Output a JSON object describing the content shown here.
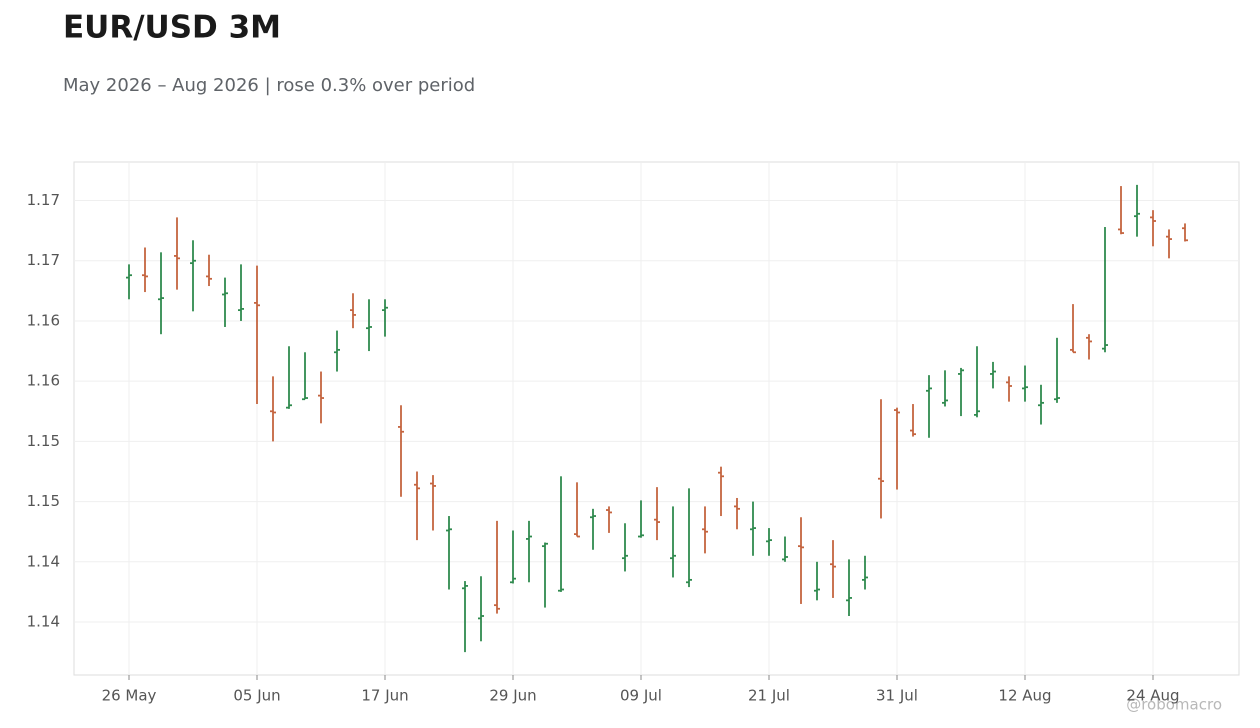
{
  "chart_data": {
    "type": "ohlc",
    "title": "EUR/USD 3M",
    "subtitle": "May 2026 – Aug 2026 | rose 0.3% over period",
    "watermark": "@robomacro",
    "categories": [
      "26 May",
      null,
      null,
      null,
      null,
      null,
      null,
      null,
      "05 Jun",
      null,
      null,
      null,
      null,
      null,
      null,
      null,
      "17 Jun",
      null,
      null,
      null,
      null,
      null,
      null,
      null,
      "29 Jun",
      null,
      null,
      null,
      null,
      null,
      null,
      null,
      "09 Jul",
      null,
      null,
      null,
      null,
      null,
      null,
      null,
      "21 Jul",
      null,
      null,
      null,
      null,
      null,
      null,
      null,
      "31 Jul",
      null,
      null,
      null,
      null,
      null,
      null,
      null,
      "12 Aug",
      null,
      null,
      null,
      null,
      null,
      null,
      null,
      "24 Aug",
      null,
      null
    ],
    "open": [
      1.1661,
      1.1663,
      1.1643,
      1.1679,
      1.1673,
      1.1662,
      1.1647,
      1.1634,
      1.164,
      1.155,
      1.1553,
      1.156,
      1.1563,
      1.1599,
      1.1634,
      1.1619,
      1.1634,
      1.1537,
      1.1489,
      1.149,
      1.1451,
      1.1403,
      1.1378,
      1.1389,
      1.1408,
      1.1444,
      1.1438,
      1.1401,
      1.1448,
      1.1462,
      1.1468,
      1.1428,
      1.1446,
      1.146,
      1.1428,
      1.1408,
      1.1452,
      1.1499,
      1.1471,
      1.1452,
      1.1442,
      1.1427,
      1.1438,
      1.1401,
      1.1423,
      1.1393,
      1.141,
      1.1494,
      1.1551,
      1.1534,
      1.1567,
      1.1557,
      1.1581,
      1.1547,
      1.1581,
      1.1574,
      1.1569,
      1.1555,
      1.156,
      1.1601,
      1.1611,
      1.1602,
      1.1701,
      1.1712,
      1.1711,
      1.1695,
      1.1702
    ],
    "high": [
      1.1672,
      1.1686,
      1.1682,
      1.1711,
      1.1692,
      1.168,
      1.1661,
      1.1672,
      1.1671,
      1.1579,
      1.1604,
      1.1599,
      1.1583,
      1.1617,
      1.1648,
      1.1643,
      1.1643,
      1.1555,
      1.15,
      1.1497,
      1.1463,
      1.1409,
      1.1413,
      1.1459,
      1.1451,
      1.1459,
      1.1441,
      1.1496,
      1.1491,
      1.1469,
      1.1471,
      1.1457,
      1.1476,
      1.1487,
      1.1471,
      1.1486,
      1.1471,
      1.1504,
      1.1478,
      1.1475,
      1.1453,
      1.1446,
      1.1462,
      1.1425,
      1.1443,
      1.1427,
      1.143,
      1.156,
      1.1553,
      1.1556,
      1.158,
      1.1584,
      1.1586,
      1.1604,
      1.1591,
      1.1579,
      1.1588,
      1.1572,
      1.1611,
      1.1639,
      1.1614,
      1.1703,
      1.1737,
      1.1738,
      1.1717,
      1.1701,
      1.1706
    ],
    "low": [
      1.1643,
      1.1649,
      1.1614,
      1.1651,
      1.1633,
      1.1654,
      1.162,
      1.1625,
      1.1556,
      1.1525,
      1.1552,
      1.156,
      1.154,
      1.1583,
      1.1619,
      1.16,
      1.1612,
      1.1479,
      1.1443,
      1.1451,
      1.1402,
      1.135,
      1.1359,
      1.1382,
      1.1407,
      1.1408,
      1.1387,
      1.14,
      1.1446,
      1.1435,
      1.1449,
      1.1417,
      1.1445,
      1.1443,
      1.1412,
      1.1404,
      1.1432,
      1.1463,
      1.1452,
      1.143,
      1.143,
      1.1425,
      1.139,
      1.1393,
      1.1395,
      1.138,
      1.1402,
      1.1461,
      1.1485,
      1.1529,
      1.1528,
      1.1554,
      1.1546,
      1.1545,
      1.1569,
      1.1558,
      1.1558,
      1.1539,
      1.1557,
      1.1599,
      1.1593,
      1.1599,
      1.1697,
      1.1695,
      1.1687,
      1.1677,
      1.1691
    ],
    "close": [
      1.1663,
      1.1662,
      1.1644,
      1.1677,
      1.1675,
      1.166,
      1.1648,
      1.1635,
      1.1638,
      1.1549,
      1.1555,
      1.1561,
      1.1561,
      1.1601,
      1.163,
      1.162,
      1.1636,
      1.1533,
      1.1486,
      1.1488,
      1.1452,
      1.1405,
      1.138,
      1.1386,
      1.1411,
      1.1446,
      1.144,
      1.1402,
      1.1446,
      1.1463,
      1.1466,
      1.143,
      1.1447,
      1.1458,
      1.143,
      1.141,
      1.145,
      1.1496,
      1.1469,
      1.1453,
      1.1443,
      1.1429,
      1.1437,
      1.1402,
      1.1421,
      1.1395,
      1.1412,
      1.1492,
      1.1549,
      1.1531,
      1.1569,
      1.1559,
      1.1584,
      1.155,
      1.1583,
      1.1571,
      1.157,
      1.1557,
      1.1561,
      1.1599,
      1.1608,
      1.1605,
      1.1698,
      1.1714,
      1.1708,
      1.1693,
      1.1692
    ],
    "up_color": "#2f8a4e",
    "down_color": "#c4643f",
    "ylim": [
      1.1331,
      1.1757
    ],
    "yticks": [
      {
        "value": 1.1375,
        "label": "1.14"
      },
      {
        "value": 1.1425,
        "label": "1.14"
      },
      {
        "value": 1.1475,
        "label": "1.15"
      },
      {
        "value": 1.1525,
        "label": "1.15"
      },
      {
        "value": 1.1575,
        "label": "1.16"
      },
      {
        "value": 1.1625,
        "label": "1.16"
      },
      {
        "value": 1.1675,
        "label": "1.17"
      },
      {
        "value": 1.1725,
        "label": "1.17"
      }
    ],
    "grid": true
  }
}
